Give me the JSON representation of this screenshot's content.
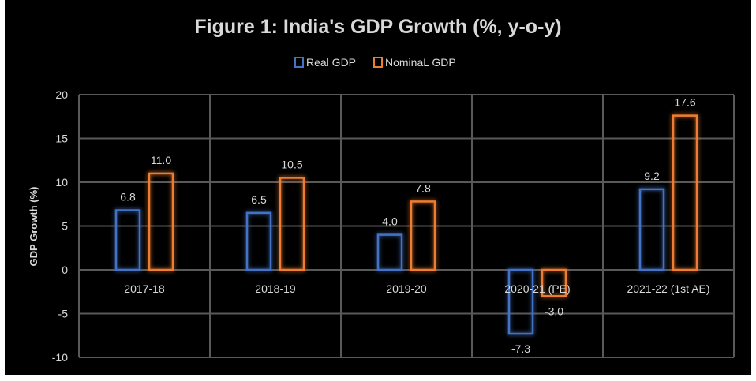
{
  "chart_data": {
    "type": "bar",
    "title": "Figure 1: India's GDP Growth (%, y-o-y)",
    "xlabel": "",
    "ylabel": "GDP Growth (%)",
    "ylim": [
      -10,
      20
    ],
    "yticks": [
      20,
      15,
      10,
      5,
      0,
      -5,
      -10
    ],
    "grid": true,
    "legend_position": "top-center",
    "categories": [
      "2017-18",
      "2018-19",
      "2019-20",
      "2020-21 (PE)",
      "2021-22 (1st AE)"
    ],
    "series": [
      {
        "name": "Real GDP",
        "color": "#4472c4",
        "values": [
          6.8,
          6.5,
          4.0,
          -7.3,
          9.2
        ],
        "labels": [
          "6.8",
          "6.5",
          "4.0",
          "-7.3",
          "9.2"
        ]
      },
      {
        "name": "NominaL GDP",
        "color": "#ed7d31",
        "values": [
          11.0,
          10.5,
          7.8,
          -3.0,
          17.6
        ],
        "labels": [
          "11.0",
          "10.5",
          "7.8",
          "-3.0",
          "17.6"
        ]
      }
    ]
  }
}
